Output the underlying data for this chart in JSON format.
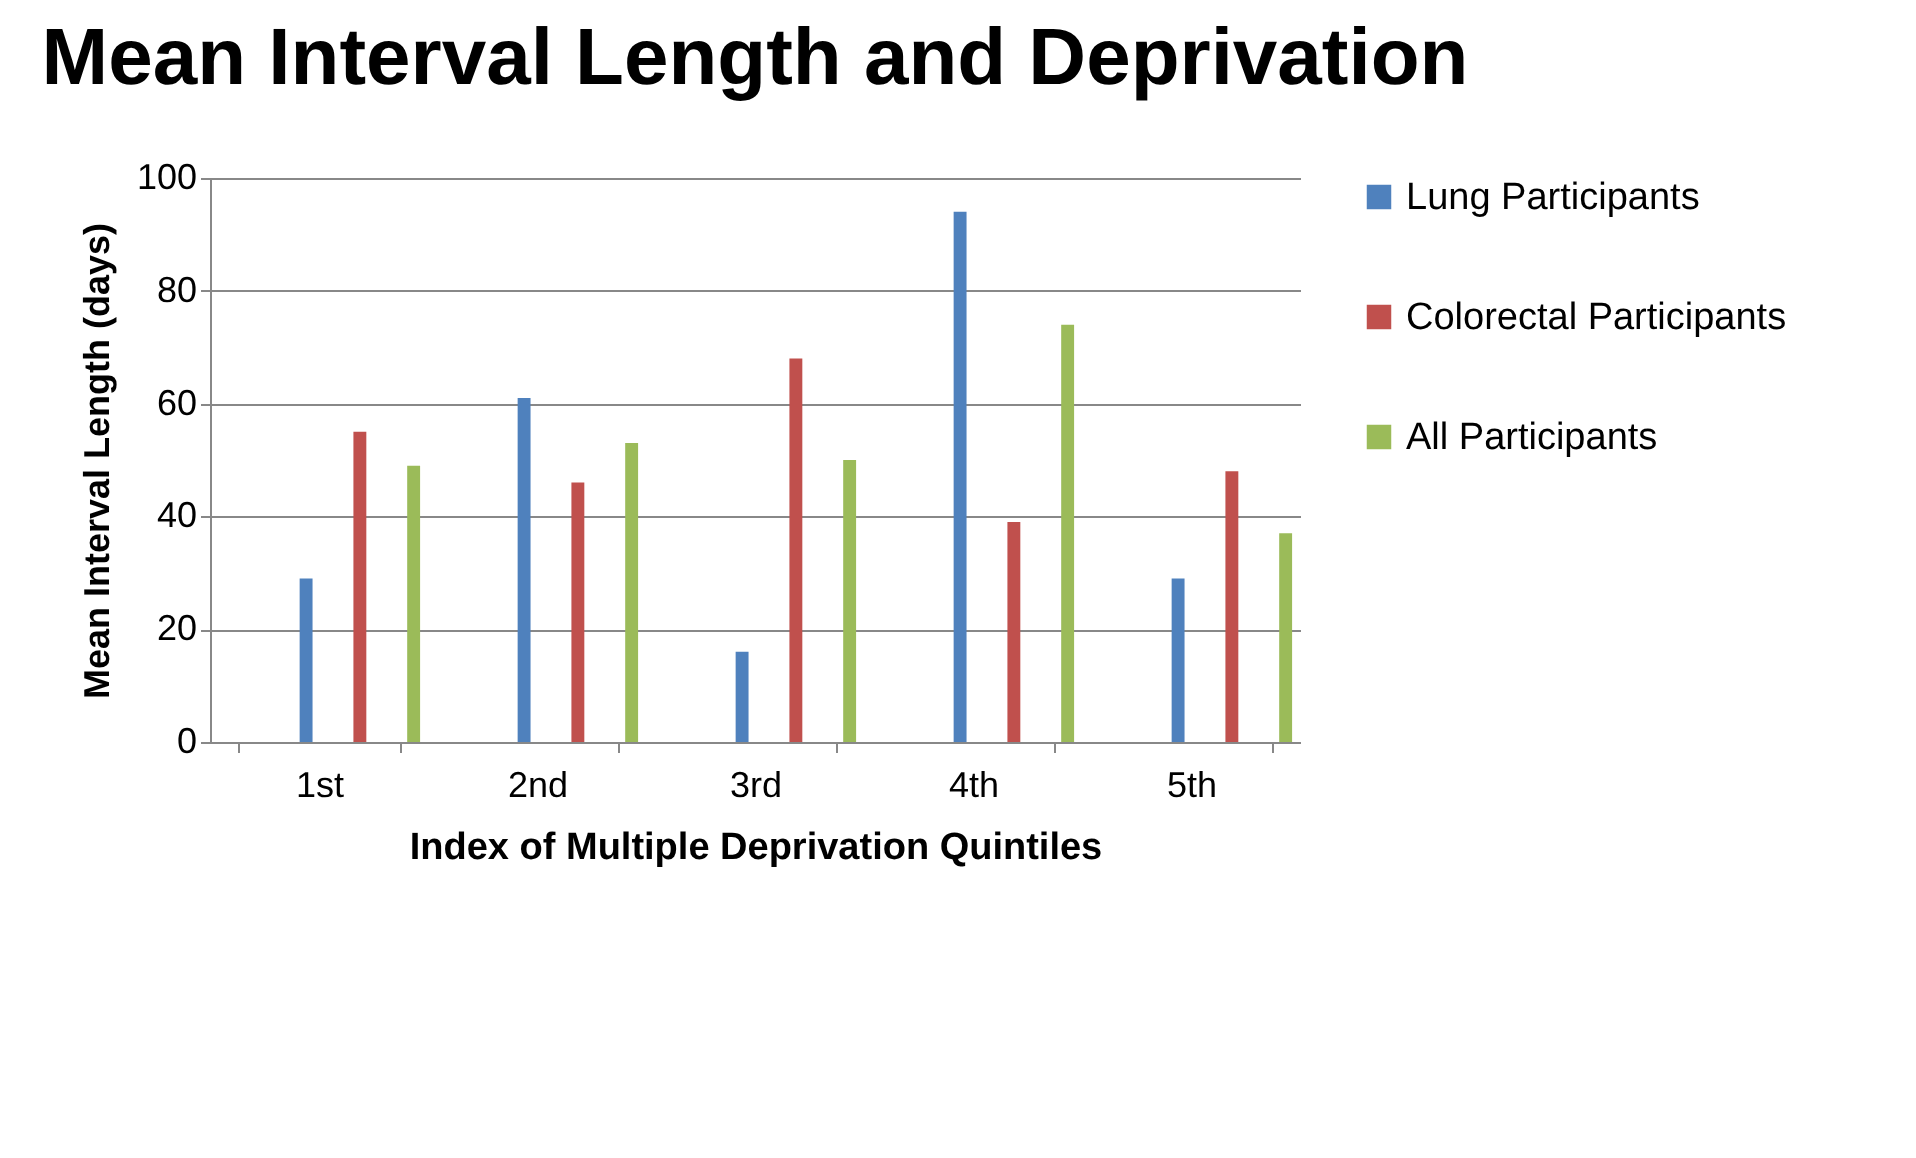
{
  "chart_data": {
    "type": "bar",
    "title": "Mean Interval Length and Deprivation",
    "xlabel": "Index of Multiple Deprivation Quintiles",
    "ylabel": "Mean Interval Length (days)",
    "categories": [
      "1st",
      "2nd",
      "3rd",
      "4th",
      "5th"
    ],
    "series": [
      {
        "name": "Lung Participants",
        "color": "#4f81bd",
        "values": [
          29,
          61,
          16,
          94,
          29
        ]
      },
      {
        "name": "Colorectal Participants",
        "color": "#c0504d",
        "values": [
          55,
          46,
          68,
          39,
          48
        ]
      },
      {
        "name": "All Participants",
        "color": "#9bbb59",
        "values": [
          49,
          53,
          50,
          74,
          37
        ]
      }
    ],
    "ylim": [
      0,
      100
    ],
    "yticks": [
      0,
      20,
      40,
      60,
      80,
      100
    ],
    "grid": "y",
    "legend": "right"
  }
}
